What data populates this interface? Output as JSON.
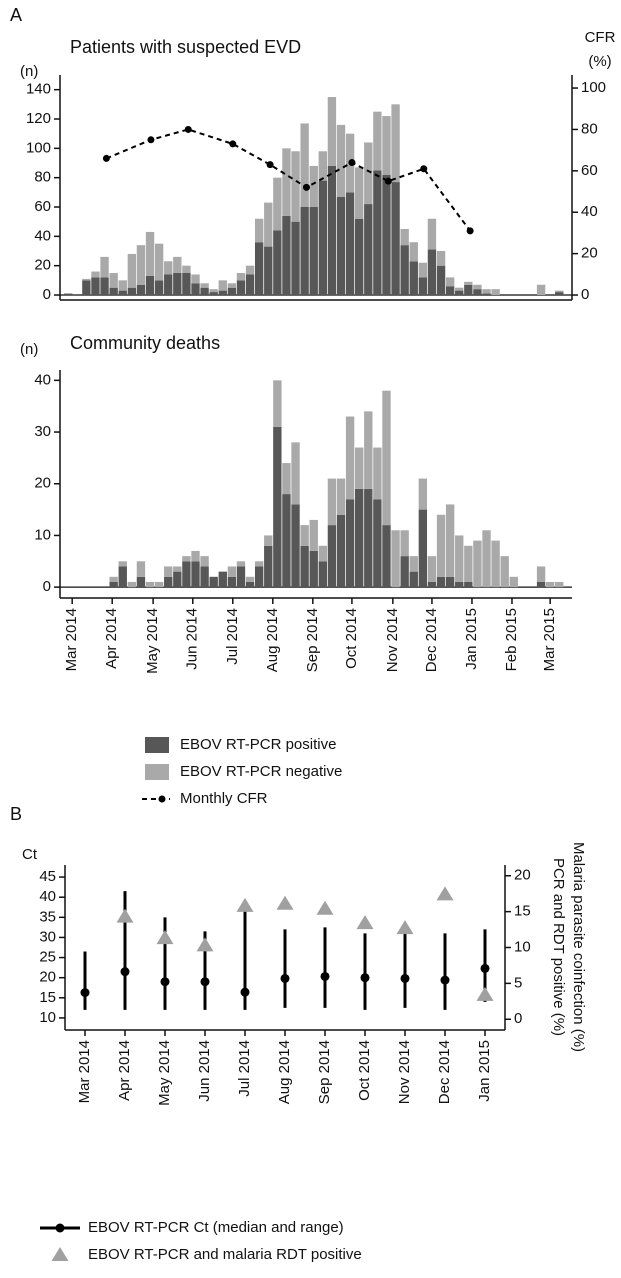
{
  "chart_data": [
    {
      "type": "bar",
      "stacked": true,
      "panel_label": "A",
      "title": "Patients with suspected EVD",
      "y_label": "(n)",
      "y2_label": "CFR",
      "y2_unit": "(%)",
      "categories": [
        null,
        null,
        null,
        null,
        null,
        null,
        null,
        null,
        null,
        null,
        null,
        null,
        null,
        null,
        null,
        null,
        null,
        null,
        null,
        null,
        null,
        null,
        null,
        null,
        null,
        null,
        null,
        null,
        null,
        null,
        null,
        null,
        null,
        null,
        null,
        null,
        null,
        null,
        null,
        null,
        null,
        null,
        null,
        null,
        null,
        null,
        null,
        null,
        null,
        null,
        null,
        null,
        null,
        null,
        null
      ],
      "xlim": [
        -0.9,
        55.4
      ],
      "ylim": [
        -3.4,
        150
      ],
      "yticks": [
        0,
        20,
        40,
        60,
        80,
        100,
        120,
        140
      ],
      "y2lim": [
        -2.4,
        106.3
      ],
      "y2ticks": [
        0,
        20,
        40,
        60,
        80,
        100
      ],
      "series": [
        {
          "name": "EBOV RT-PCR positive",
          "color": "#575757",
          "values": [
            1,
            0,
            10,
            12,
            12,
            5,
            3,
            5,
            7,
            13,
            10,
            14,
            15,
            15,
            8,
            5,
            2,
            3,
            5,
            10,
            14,
            36,
            33,
            44,
            54,
            50,
            60,
            60,
            78,
            88,
            67,
            70,
            52,
            62,
            85,
            82,
            77,
            34,
            23,
            12,
            31,
            20,
            6,
            3,
            7,
            4,
            1,
            0,
            0,
            0,
            0,
            0,
            0,
            0,
            2
          ]
        },
        {
          "name": "EBOV RT-PCR negative",
          "color": "#a9a9a9",
          "values": [
            0,
            0,
            1,
            4,
            14,
            10,
            7,
            23,
            27,
            30,
            25,
            9,
            11,
            5,
            6,
            3,
            2,
            7,
            3,
            5,
            6,
            16,
            30,
            36,
            46,
            48,
            57,
            28,
            20,
            47,
            49,
            40,
            35,
            42,
            40,
            40,
            53,
            11,
            13,
            10,
            21,
            10,
            6,
            2,
            2,
            3,
            3,
            4,
            0,
            0,
            0,
            0,
            7,
            0,
            1
          ]
        },
        {
          "name": "Monthly CFR",
          "type": "line",
          "axis": "y2",
          "color": "#000000",
          "x": [
            4.2,
            9.1,
            13.2,
            18.1,
            22.2,
            26.2,
            31.2,
            35.2,
            39.1,
            44.2
          ],
          "values": [
            66,
            75,
            80,
            73,
            63,
            52,
            64,
            55,
            61,
            31
          ]
        }
      ]
    },
    {
      "type": "bar",
      "stacked": true,
      "title": "Community deaths",
      "y_label": "(n)",
      "categories": [
        null,
        null,
        null,
        null,
        null,
        null,
        null,
        null,
        null,
        null,
        null,
        null,
        null,
        null,
        null,
        null,
        null,
        null,
        null,
        null,
        null,
        null,
        null,
        null,
        null,
        null,
        null,
        null,
        null,
        null,
        null,
        null,
        null,
        null,
        null,
        null,
        null,
        null,
        null,
        null,
        null,
        null,
        null,
        null,
        null,
        null,
        null,
        null,
        null,
        null,
        null,
        null,
        null,
        null,
        null
      ],
      "xlim": [
        -0.9,
        55.4
      ],
      "ylim": [
        -2.1,
        42
      ],
      "yticks": [
        0,
        10,
        20,
        30,
        40
      ],
      "xticks": [
        {
          "value": 0.44,
          "label": "Mar 2014"
        },
        {
          "value": 4.84,
          "label": "Apr 2014"
        },
        {
          "value": 9.34,
          "label": "May 2014"
        },
        {
          "value": 13.7,
          "label": "Jun 2014"
        },
        {
          "value": 18.1,
          "label": "Jul 2014"
        },
        {
          "value": 22.5,
          "label": "Aug 2014"
        },
        {
          "value": 26.9,
          "label": "Sep 2014"
        },
        {
          "value": 31.2,
          "label": "Oct 2014"
        },
        {
          "value": 35.7,
          "label": "Nov 2014"
        },
        {
          "value": 40,
          "label": "Dec 2014"
        },
        {
          "value": 44.4,
          "label": "Jan 2015"
        },
        {
          "value": 48.8,
          "label": "Feb 2015"
        },
        {
          "value": 53,
          "label": "Mar 2015"
        }
      ],
      "series": [
        {
          "color": "#575757",
          "values": [
            0,
            0,
            0,
            0,
            0,
            1,
            4,
            0,
            2,
            0,
            0,
            2,
            3,
            5,
            5,
            4,
            2,
            3,
            2,
            4,
            1,
            4,
            8,
            31,
            18,
            16,
            8,
            7,
            5,
            12,
            14,
            17,
            19,
            19,
            17,
            12,
            0,
            6,
            3,
            15,
            1,
            2,
            2,
            1,
            1,
            0,
            0,
            0,
            0,
            0,
            0,
            0,
            1,
            0,
            0
          ]
        },
        {
          "color": "#a9a9a9",
          "values": [
            0,
            0,
            0,
            0,
            0,
            1,
            1,
            1,
            3,
            1,
            1,
            2,
            1,
            1,
            2,
            2,
            0,
            0,
            2,
            1,
            1,
            1,
            2,
            9,
            6,
            12,
            4,
            6,
            3,
            9,
            7,
            16,
            8,
            15,
            10,
            26,
            11,
            5,
            3,
            6,
            5,
            12,
            14,
            9,
            7,
            9,
            11,
            9,
            6,
            2,
            0,
            0,
            3,
            1,
            1
          ]
        }
      ]
    },
    {
      "type": "range",
      "panel_label": "B",
      "y_label": "Ct",
      "y2_label": [
        "Malaria parasite coinfection (%)",
        "PCR and RDT positive (%)"
      ],
      "categories": [
        "Mar 2014",
        "Apr 2014",
        "May 2014",
        "Jun 2014",
        "Jul 2014",
        "Aug 2014",
        "Sep 2014",
        "Oct 2014",
        "Nov 2014",
        "Dec 2014",
        "Jan 2015"
      ],
      "ylim": [
        7,
        48
      ],
      "yticks": [
        10,
        15,
        20,
        25,
        30,
        35,
        40,
        45
      ],
      "y2lim": [
        -1.5,
        21.5
      ],
      "y2ticks": [
        0,
        5,
        10,
        15,
        20
      ],
      "series": [
        {
          "name": "EBOV RT-PCR Ct (median and range)",
          "color": "#000000",
          "median": [
            16.3,
            21.5,
            19,
            19,
            16.4,
            19.8,
            20.3,
            20,
            19.8,
            19.4,
            22.3
          ],
          "min": [
            12,
            12,
            12,
            12,
            12,
            12.5,
            12.5,
            12,
            12.5,
            12,
            14
          ],
          "max": [
            26.5,
            41.5,
            35,
            31.5,
            37,
            32,
            32.5,
            31,
            32,
            31,
            32
          ]
        },
        {
          "name": "EBOV RT-PCR and malaria RDT positive",
          "axis": "y2",
          "type": "triangle",
          "color": "#a0a0a0",
          "values": [
            null,
            14.3,
            11.3,
            10.3,
            15.8,
            16.1,
            15.4,
            13.4,
            12.7,
            17.4,
            3.4
          ]
        }
      ]
    }
  ]
}
